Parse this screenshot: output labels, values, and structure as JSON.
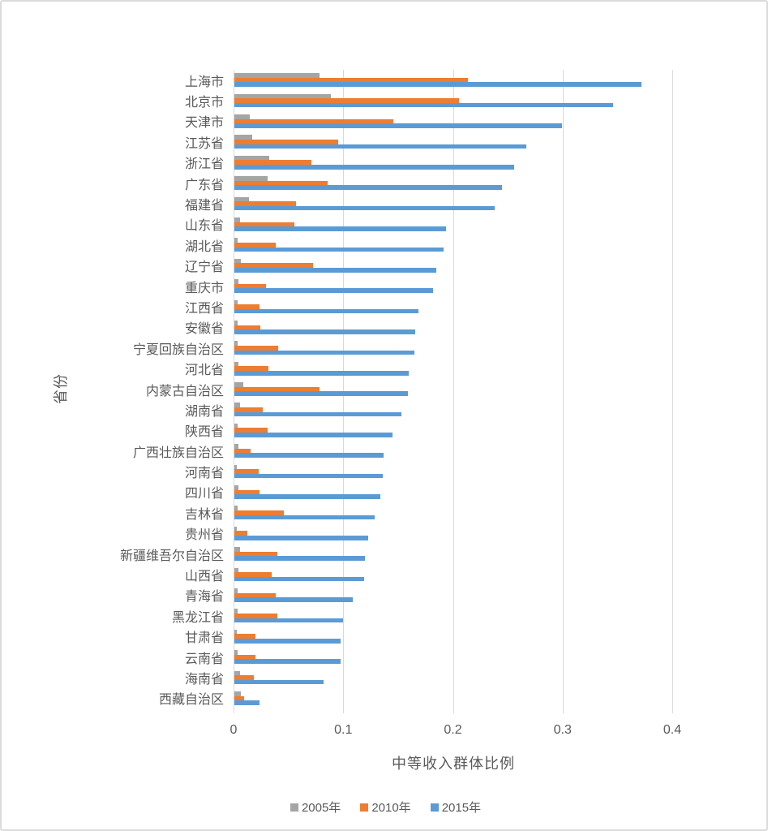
{
  "chart_data": {
    "type": "bar",
    "orientation": "horizontal",
    "title": "",
    "xlabel": "中等收入群体比例",
    "ylabel": "省份",
    "xlim": [
      0,
      0.4
    ],
    "xticks": [
      0,
      0.1,
      0.2,
      0.3,
      0.4
    ],
    "xtick_labels": [
      "0",
      "0.1",
      "0.2",
      "0.3",
      "0.4"
    ],
    "grid": "vertical-major",
    "legend_position": "bottom",
    "categories": [
      "上海市",
      "北京市",
      "天津市",
      "江苏省",
      "浙江省",
      "广东省",
      "福建省",
      "山东省",
      "湖北省",
      "辽宁省",
      "重庆市",
      "江西省",
      "安徽省",
      "宁夏回族自治区",
      "河北省",
      "内蒙古自治区",
      "湖南省",
      "陕西省",
      "广西壮族自治区",
      "河南省",
      "四川省",
      "吉林省",
      "贵州省",
      "新疆维吾尔自治区",
      "山西省",
      "青海省",
      "黑龙江省",
      "甘肃省",
      "云南省",
      "海南省",
      "西藏自治区"
    ],
    "series": [
      {
        "name": "2005年",
        "color": "#A5A5A5",
        "values": [
          0.078,
          0.088,
          0.014,
          0.016,
          0.032,
          0.03,
          0.013,
          0.005,
          0.003,
          0.006,
          0.004,
          0.003,
          0.003,
          0.003,
          0.004,
          0.008,
          0.005,
          0.003,
          0.004,
          0.002,
          0.004,
          0.003,
          0.002,
          0.005,
          0.004,
          0.003,
          0.003,
          0.002,
          0.003,
          0.005,
          0.006
        ]
      },
      {
        "name": "2010年",
        "color": "#ED7D31",
        "values": [
          0.213,
          0.205,
          0.145,
          0.095,
          0.07,
          0.085,
          0.056,
          0.055,
          0.038,
          0.072,
          0.029,
          0.023,
          0.024,
          0.04,
          0.031,
          0.078,
          0.026,
          0.03,
          0.015,
          0.022,
          0.023,
          0.045,
          0.012,
          0.039,
          0.034,
          0.038,
          0.039,
          0.019,
          0.019,
          0.018,
          0.009
        ]
      },
      {
        "name": "2015年",
        "color": "#5B9BD5",
        "values": [
          0.371,
          0.345,
          0.299,
          0.266,
          0.255,
          0.244,
          0.237,
          0.193,
          0.191,
          0.184,
          0.181,
          0.168,
          0.165,
          0.164,
          0.159,
          0.158,
          0.152,
          0.144,
          0.136,
          0.135,
          0.133,
          0.128,
          0.122,
          0.119,
          0.118,
          0.108,
          0.099,
          0.097,
          0.097,
          0.081,
          0.023
        ]
      }
    ]
  },
  "colors": {
    "gridline": "#D9D9D9",
    "axis_line": "#D9D9D9",
    "text": "#595959",
    "background": "#FFFFFF",
    "frame_border": "#DBDBDB"
  }
}
